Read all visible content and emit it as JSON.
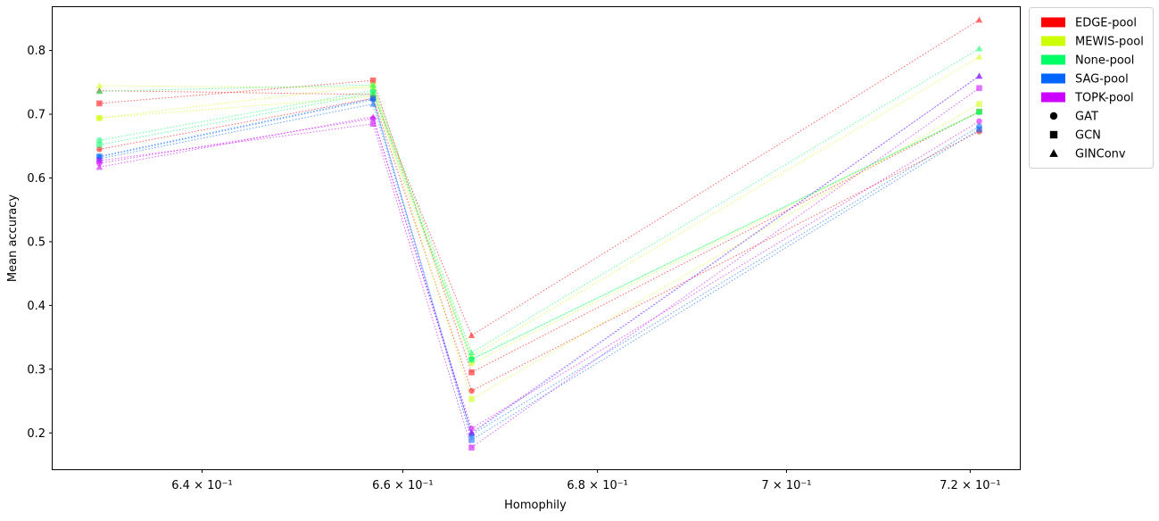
{
  "chart_data": {
    "type": "scatter",
    "x_scale": "log",
    "xlabel": "Homophily",
    "ylabel": "Mean accuracy",
    "xlim": [
      0.6255,
      0.7255
    ],
    "ylim": [
      0.143,
      0.868
    ],
    "x_ticks": [
      {
        "value": 0.64,
        "label": "6.4 × 10⁻¹"
      },
      {
        "value": 0.66,
        "label": "6.6 × 10⁻¹"
      },
      {
        "value": 0.68,
        "label": "6.8 × 10⁻¹"
      },
      {
        "value": 0.7,
        "label": "7 × 10⁻¹"
      },
      {
        "value": 0.72,
        "label": "7.2 × 10⁻¹"
      }
    ],
    "y_ticks": [
      0.2,
      0.3,
      0.4,
      0.5,
      0.6,
      0.7,
      0.8
    ],
    "y_tick_labels": [
      "0.2",
      "0.3",
      "0.4",
      "0.5",
      "0.6",
      "0.7",
      "0.8"
    ],
    "x": [
      0.63,
      0.657,
      0.667,
      0.721
    ],
    "line_style": "dotted",
    "legend": {
      "placement": "outside-top-right",
      "entries": [
        {
          "label": "EDGE-pool",
          "kind": "patch",
          "color": "#ff0000"
        },
        {
          "label": "MEWIS-pool",
          "kind": "patch",
          "color": "#ccff00"
        },
        {
          "label": "None-pool",
          "kind": "patch",
          "color": "#00ff66"
        },
        {
          "label": "SAG-pool",
          "kind": "patch",
          "color": "#0066ff"
        },
        {
          "label": "TOPK-pool",
          "kind": "patch",
          "color": "#cc00ff"
        },
        {
          "label": "GAT",
          "kind": "marker",
          "marker": "circle"
        },
        {
          "label": "GCN",
          "kind": "marker",
          "marker": "square"
        },
        {
          "label": "GINConv",
          "kind": "marker",
          "marker": "triangle"
        }
      ]
    },
    "series": [
      {
        "pool": "EDGE-pool",
        "model": "GAT",
        "color": "#ff0000",
        "marker": "circle",
        "y": [
          0.645,
          0.725,
          0.266,
          0.673
        ]
      },
      {
        "pool": "EDGE-pool",
        "model": "GCN",
        "color": "#ff0000",
        "marker": "square",
        "y": [
          0.717,
          0.753,
          0.295,
          0.704
        ]
      },
      {
        "pool": "EDGE-pool",
        "model": "GINConv",
        "color": "#ff0000",
        "marker": "triangle",
        "y": [
          0.737,
          0.731,
          0.353,
          0.848
        ]
      },
      {
        "pool": "MEWIS-pool",
        "model": "GAT",
        "color": "#ccff00",
        "marker": "circle",
        "y": [
          0.694,
          0.728,
          0.309,
          0.704
        ]
      },
      {
        "pool": "MEWIS-pool",
        "model": "GCN",
        "color": "#ccff00",
        "marker": "square",
        "y": [
          0.694,
          0.745,
          0.253,
          0.716
        ]
      },
      {
        "pool": "MEWIS-pool",
        "model": "GINConv",
        "color": "#ccff00",
        "marker": "triangle",
        "y": [
          0.745,
          0.741,
          0.32,
          0.79
        ]
      },
      {
        "pool": "None-pool",
        "model": "GAT",
        "color": "#00ff66",
        "marker": "circle",
        "y": [
          0.659,
          0.737,
          0.316,
          0.703
        ]
      },
      {
        "pool": "None-pool",
        "model": "GCN",
        "color": "#00ff66",
        "marker": "square",
        "y": [
          0.652,
          0.733,
          0.315,
          0.704
        ]
      },
      {
        "pool": "None-pool",
        "model": "GINConv",
        "color": "#00ff66",
        "marker": "triangle",
        "y": [
          0.736,
          0.746,
          0.326,
          0.803
        ]
      },
      {
        "pool": "SAG-pool",
        "model": "GAT",
        "color": "#0066ff",
        "marker": "circle",
        "y": [
          0.633,
          0.723,
          0.197,
          0.681
        ]
      },
      {
        "pool": "SAG-pool",
        "model": "GCN",
        "color": "#0066ff",
        "marker": "square",
        "y": [
          0.634,
          0.725,
          0.189,
          0.676
        ]
      },
      {
        "pool": "SAG-pool",
        "model": "GINConv",
        "color": "#0066ff",
        "marker": "triangle",
        "y": [
          0.63,
          0.716,
          0.199,
          0.76
        ]
      },
      {
        "pool": "TOPK-pool",
        "model": "GAT",
        "color": "#cc00ff",
        "marker": "circle",
        "y": [
          0.623,
          0.693,
          0.207,
          0.689
        ]
      },
      {
        "pool": "TOPK-pool",
        "model": "GCN",
        "color": "#cc00ff",
        "marker": "square",
        "y": [
          0.627,
          0.685,
          0.177,
          0.741
        ]
      },
      {
        "pool": "TOPK-pool",
        "model": "GINConv",
        "color": "#cc00ff",
        "marker": "triangle",
        "y": [
          0.617,
          0.696,
          0.201,
          0.76
        ]
      }
    ]
  }
}
